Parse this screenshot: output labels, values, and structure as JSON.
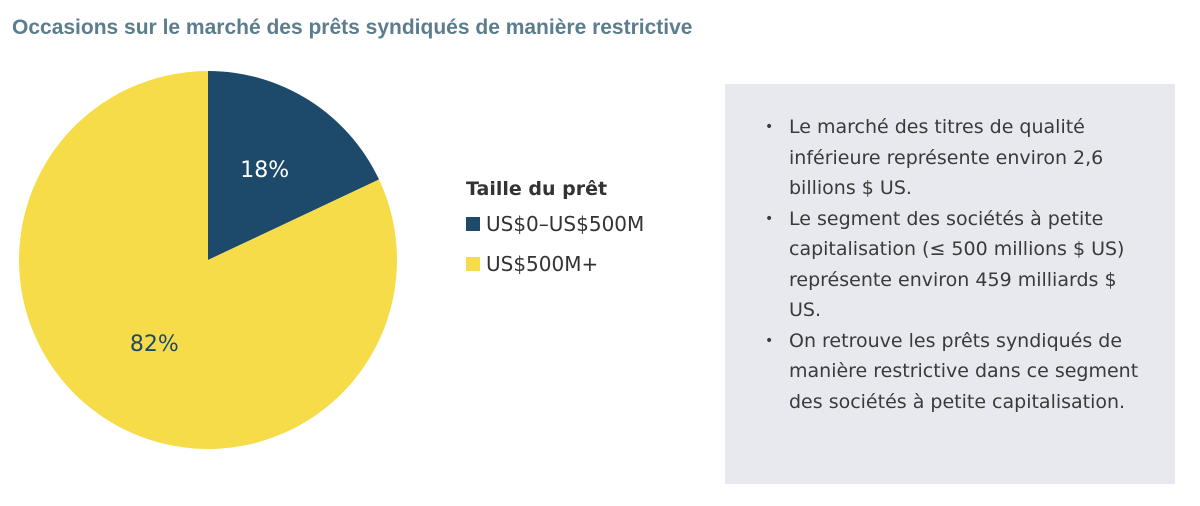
{
  "chart_data": {
    "type": "pie",
    "title": "Occasions sur le marché des prêts syndiqués de manière restrictive",
    "legend_title": "Taille du prêt",
    "legend_position": "right",
    "slices": [
      {
        "label": "US$0–US$500M",
        "value": 18,
        "display": "18%",
        "color": "#1d4a6b",
        "label_color": "#ffffff"
      },
      {
        "label": "US$500M+",
        "value": 82,
        "display": "82%",
        "color": "#f7dc4a",
        "label_color": "#1d4a6b"
      }
    ]
  },
  "notes": {
    "items": [
      "Le marché des titres de qualité inférieure représente environ 2,6 billions $ US.",
      "Le segment des sociétés à petite capitalisation (≤ 500 millions $ US) représente environ 459 milliards $ US.",
      "On retrouve les prêts syndiqués de manière restrictive dans ce segment des sociétés à petite capitalisation."
    ]
  },
  "colors": {
    "title": "#5b7d8d",
    "panel_bg": "#e8e9ee"
  }
}
